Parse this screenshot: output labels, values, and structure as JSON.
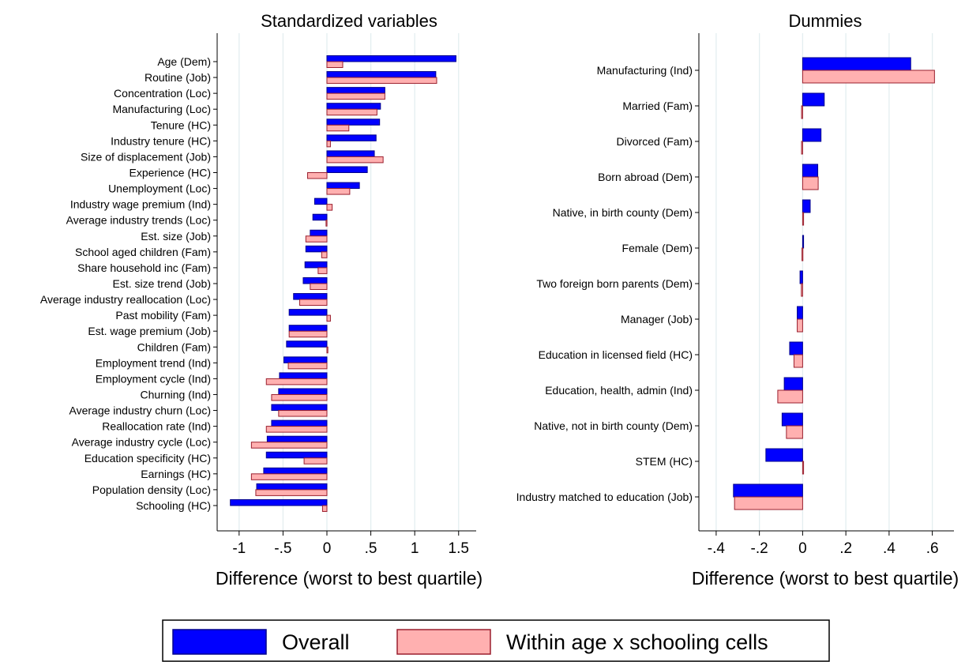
{
  "chart_data": [
    {
      "type": "bar",
      "orientation": "horizontal",
      "title": "Standardized variables",
      "xlabel": "Difference (worst to best quartile)",
      "xlim": [
        -1.25,
        1.7
      ],
      "xticks": [
        -1,
        -0.5,
        0,
        0.5,
        1,
        1.5
      ],
      "xtick_labels": [
        "-1",
        "-.5",
        "0",
        ".5",
        "1",
        "1.5"
      ],
      "grid": true,
      "categories": [
        "Age (Dem)",
        "Routine (Job)",
        "Concentration (Loc)",
        "Manufacturing (Loc)",
        "Tenure (HC)",
        "Industry tenure (HC)",
        "Size of displacement (Job)",
        "Experience (HC)",
        "Unemployment (Loc)",
        "Industry wage premium (Ind)",
        "Average industry trends (Loc)",
        "Est. size (Job)",
        "School aged children (Fam)",
        "Share household inc (Fam)",
        "Est. size trend (Job)",
        "Average industry reallocation (Loc)",
        "Past mobility (Fam)",
        "Est. wage premium (Job)",
        "Children (Fam)",
        "Employment trend (Ind)",
        "Employment cycle (Ind)",
        "Churning (Ind)",
        "Average industry churn (Loc)",
        "Reallocation rate (Ind)",
        "Average industry cycle (Loc)",
        "Education specificity (HC)",
        "Earnings (HC)",
        "Population density (Loc)",
        "Schooling (HC)"
      ],
      "series": [
        {
          "name": "Overall",
          "values": [
            1.47,
            1.24,
            0.66,
            0.61,
            0.6,
            0.56,
            0.54,
            0.46,
            0.37,
            -0.14,
            -0.16,
            -0.19,
            -0.24,
            -0.25,
            -0.27,
            -0.38,
            -0.43,
            -0.43,
            -0.46,
            -0.49,
            -0.54,
            -0.55,
            -0.63,
            -0.63,
            -0.68,
            -0.69,
            -0.72,
            -0.8,
            -1.1
          ]
        },
        {
          "name": "Within age x schooling cells",
          "values": [
            0.18,
            1.25,
            0.66,
            0.57,
            0.25,
            0.04,
            0.64,
            -0.22,
            0.26,
            0.06,
            -0.01,
            -0.24,
            -0.06,
            -0.1,
            -0.19,
            -0.31,
            0.04,
            -0.43,
            0.01,
            -0.44,
            -0.69,
            -0.63,
            -0.55,
            -0.69,
            -0.86,
            -0.26,
            -0.86,
            -0.81,
            -0.05
          ]
        }
      ]
    },
    {
      "type": "bar",
      "orientation": "horizontal",
      "title": "Dummies",
      "xlabel": "Difference (worst to best quartile)",
      "xlim": [
        -0.48,
        0.7
      ],
      "xticks": [
        -0.4,
        -0.2,
        0,
        0.2,
        0.4,
        0.6
      ],
      "xtick_labels": [
        "-.4",
        "-.2",
        "0",
        ".2",
        ".4",
        ".6"
      ],
      "grid": true,
      "categories": [
        "Manufacturing (Ind)",
        "Married (Fam)",
        "Divorced (Fam)",
        "Born abroad (Dem)",
        "Native, in birth county (Dem)",
        "Female (Dem)",
        "Two foreign born parents (Dem)",
        "Manager (Job)",
        "Education in licensed field (HC)",
        "Education, health, admin (Ind)",
        "Native, not in birth county (Dem)",
        "STEM (HC)",
        "Industry matched to education (Job)"
      ],
      "series": [
        {
          "name": "Overall",
          "values": [
            0.5,
            0.1,
            0.085,
            0.07,
            0.035,
            0.003,
            -0.012,
            -0.025,
            -0.06,
            -0.085,
            -0.095,
            -0.17,
            -0.32
          ]
        },
        {
          "name": "Within age x schooling cells",
          "values": [
            0.61,
            -0.005,
            -0.005,
            0.072,
            0.004,
            -0.003,
            -0.006,
            -0.025,
            -0.04,
            -0.115,
            -0.075,
            0.004,
            -0.315
          ]
        }
      ]
    }
  ],
  "legend": {
    "position": "bottom",
    "items": [
      "Overall",
      "Within age x schooling cells"
    ]
  },
  "colors": {
    "overall_fill": "#0000ff",
    "overall_stroke": "#00008b",
    "within_fill": "#ffb0b0",
    "within_stroke": "#9a1f2e",
    "grid": "#e3eef0"
  }
}
